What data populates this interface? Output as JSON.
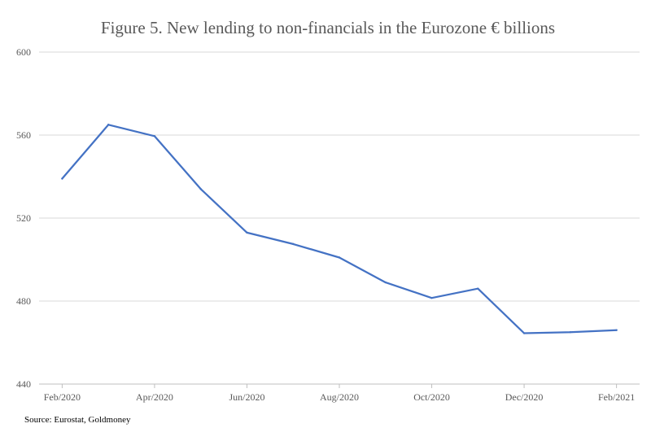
{
  "chart_data": {
    "type": "line",
    "title": "Figure 5. New lending to non-financials in the Eurozone € billions",
    "source": "Source: Eurostat, Goldmoney",
    "xlabel": "",
    "ylabel": "",
    "x": [
      "Feb/2020",
      "Mar/2020",
      "Apr/2020",
      "May/2020",
      "Jun/2020",
      "Jul/2020",
      "Aug/2020",
      "Sep/2020",
      "Oct/2020",
      "Nov/2020",
      "Dec/2020",
      "Jan/2021",
      "Feb/2021"
    ],
    "x_tick_labels": [
      "Feb/2020",
      "Apr/2020",
      "Jun/2020",
      "Aug/2020",
      "Oct/2020",
      "Dec/2020",
      "Feb/2021"
    ],
    "y_ticks": [
      440,
      480,
      520,
      560,
      600
    ],
    "ylim": [
      440,
      600
    ],
    "grid": "horizontal",
    "legend": "none",
    "series": [
      {
        "color": "#4472c4",
        "values": [
          539,
          565,
          559.5,
          534,
          513,
          507.5,
          501,
          489,
          481.5,
          486,
          464.5,
          465,
          466
        ]
      }
    ]
  }
}
